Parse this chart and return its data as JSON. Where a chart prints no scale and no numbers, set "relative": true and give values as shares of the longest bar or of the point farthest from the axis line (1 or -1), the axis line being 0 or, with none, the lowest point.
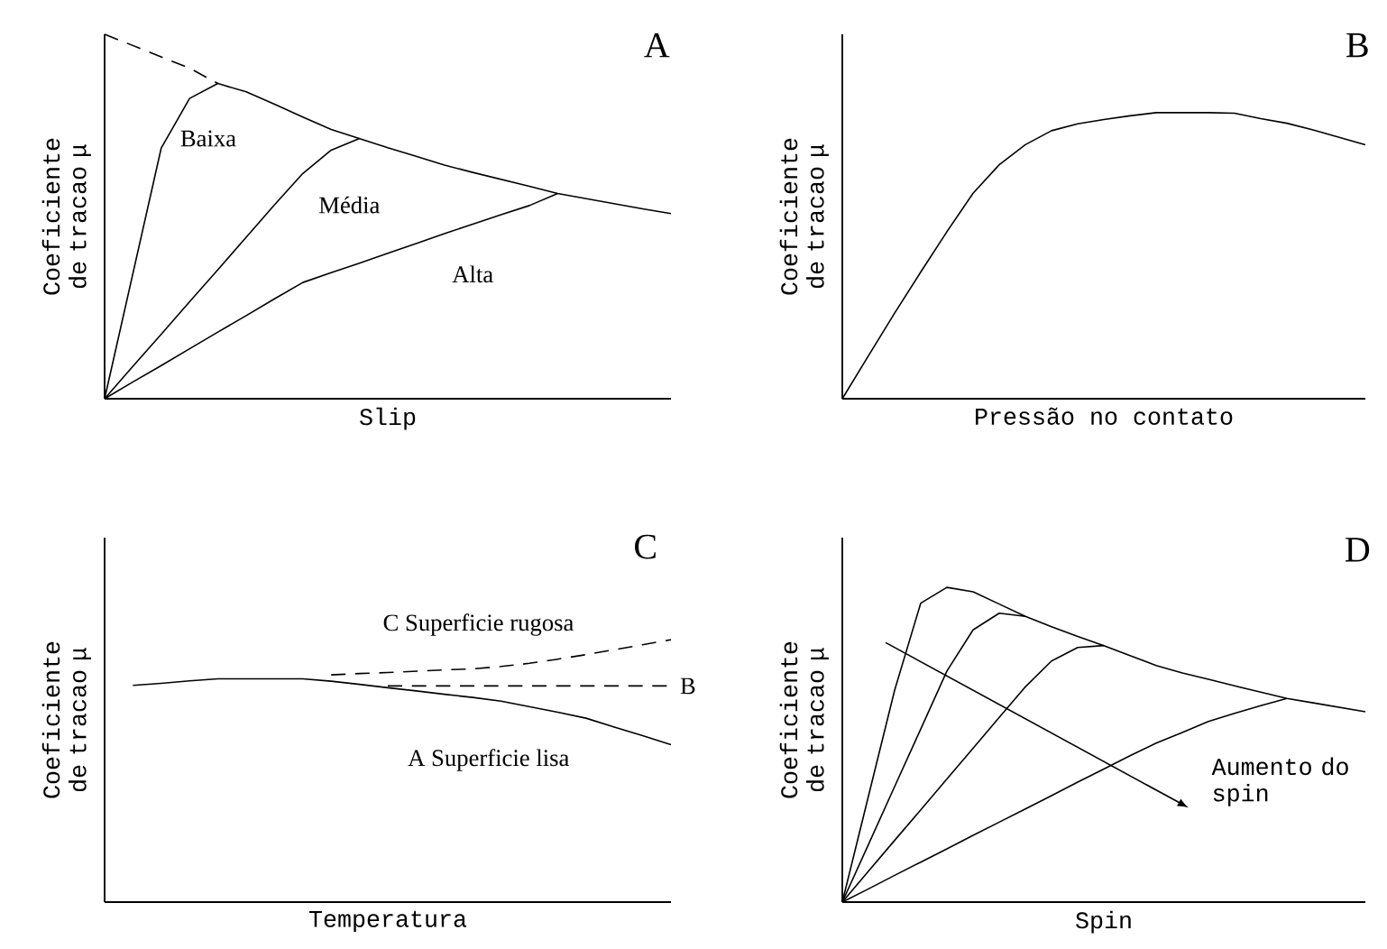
{
  "chart_data": [
    {
      "type": "line",
      "relative": true,
      "xlabel": "Slip",
      "ylabel": "Coeficiente de tracao μ",
      "tick_labels": false,
      "annotations": [
        "A"
      ],
      "categories": [
        null,
        null,
        null,
        null,
        null,
        null,
        null,
        null,
        null,
        null,
        null,
        null,
        null,
        null,
        null,
        null,
        null,
        null,
        null,
        null,
        null
      ],
      "series": [
        {
          "color": "#000000",
          "line_style": "dashed",
          "values": [
            1,
            0.969,
            0.938,
            0.907,
            0.865,
            null,
            null,
            null,
            null,
            null,
            null,
            null,
            null,
            null,
            null,
            null,
            null,
            null,
            null,
            null,
            null
          ]
        },
        {
          "name": "Baixa",
          "color": "#000000",
          "values": [
            0,
            0.344,
            0.688,
            0.824,
            0.865,
            0.842,
            0.808,
            0.773,
            0.739,
            0.714,
            0.689,
            0.665,
            0.641,
            0.621,
            0.602,
            0.583,
            0.563,
            0.549,
            0.535,
            0.521,
            0.508
          ]
        },
        {
          "name": "Média",
          "color": "#000000",
          "values": [
            0,
            0.089,
            0.177,
            0.266,
            0.354,
            0.443,
            0.532,
            0.618,
            0.682,
            0.714,
            null,
            null,
            null,
            null,
            null,
            null,
            null,
            null,
            null,
            null,
            null
          ]
        },
        {
          "name": "Alta",
          "color": "#000000",
          "values": [
            0,
            0.046,
            0.091,
            0.137,
            0.183,
            0.228,
            0.274,
            0.319,
            0.346,
            0.372,
            0.399,
            0.426,
            0.453,
            0.479,
            0.505,
            0.53,
            0.563,
            null,
            null,
            null,
            null
          ]
        }
      ]
    },
    {
      "type": "line",
      "relative": true,
      "xlabel": "Pressão no contato",
      "ylabel": "Coeficiente de tracao μ",
      "tick_labels": false,
      "annotations": [
        "B"
      ],
      "categories": [
        null,
        null,
        null,
        null,
        null,
        null,
        null,
        null,
        null,
        null,
        null,
        null,
        null,
        null,
        null,
        null,
        null,
        null,
        null,
        null,
        null
      ],
      "series": [
        {
          "color": "#000000",
          "values": [
            0,
            0.15,
            0.299,
            0.443,
            0.584,
            0.718,
            0.818,
            0.888,
            0.937,
            0.961,
            0.976,
            0.989,
            1,
            1,
            1,
            0.998,
            0.979,
            0.963,
            0.94,
            0.914,
            0.888
          ]
        }
      ]
    },
    {
      "type": "line",
      "relative": true,
      "xlabel": "Temperatura",
      "ylabel": "Coeficiente de tracao μ",
      "tick_labels": false,
      "annotations": [
        "C"
      ],
      "categories": [
        null,
        null,
        null,
        null,
        null,
        null,
        null,
        null,
        null,
        null,
        null,
        null,
        null,
        null,
        null,
        null,
        null,
        null,
        null,
        null,
        null
      ],
      "series": [
        {
          "name": "A Superficie lisa",
          "color": "#000000",
          "values": [
            null,
            0.826,
            0.834,
            0.843,
            0.851,
            0.851,
            0.851,
            0.851,
            0.842,
            0.83,
            0.817,
            0.805,
            0.792,
            0.78,
            0.766,
            0.745,
            0.724,
            0.701,
            0.667,
            0.634,
            0.6
          ]
        },
        {
          "name": "C Superficie rugosa",
          "color": "#000000",
          "line_style": "dashed",
          "values": [
            null,
            null,
            null,
            null,
            null,
            null,
            null,
            null,
            0.866,
            0.871,
            0.875,
            0.88,
            0.885,
            0.889,
            0.898,
            0.91,
            0.926,
            0.943,
            0.962,
            0.981,
            1
          ]
        },
        {
          "name": "B",
          "color": "#000000",
          "line_style": "dashed",
          "values": [
            null,
            null,
            null,
            null,
            null,
            null,
            null,
            null,
            null,
            null,
            0.824,
            0.824,
            0.824,
            0.824,
            0.824,
            0.824,
            0.824,
            0.824,
            0.824,
            0.824,
            0.824
          ]
        }
      ]
    },
    {
      "type": "line",
      "relative": true,
      "xlabel": "Spin",
      "ylabel": "Coeficiente de tracao μ",
      "tick_labels": false,
      "annotations": [
        "D",
        "Aumento do spin"
      ],
      "categories": [
        null,
        null,
        null,
        null,
        null,
        null,
        null,
        null,
        null,
        null,
        null,
        null,
        null,
        null,
        null,
        null,
        null,
        null,
        null,
        null,
        null
      ],
      "series": [
        {
          "color": "#000000",
          "values": [
            0,
            0.337,
            0.673,
            0.95,
            1,
            0.986,
            0.947,
            0.908,
            0.875,
            0.844,
            0.815,
            0.783,
            0.752,
            0.728,
            0.708,
            0.687,
            0.667,
            0.647,
            0.633,
            0.619,
            0.605
          ]
        },
        {
          "color": "#000000",
          "values": [
            0,
            0.183,
            0.367,
            0.55,
            0.734,
            0.865,
            0.918,
            0.908,
            null,
            null,
            null,
            null,
            null,
            null,
            null,
            null,
            null,
            null,
            null,
            null,
            null
          ]
        },
        {
          "color": "#000000",
          "values": [
            0,
            0.098,
            0.196,
            0.293,
            0.391,
            0.489,
            0.587,
            0.684,
            0.766,
            0.809,
            0.815,
            null,
            null,
            null,
            null,
            null,
            null,
            null,
            null,
            null,
            null
          ]
        },
        {
          "color": "#000000",
          "values": [
            0,
            0.042,
            0.085,
            0.127,
            0.169,
            0.212,
            0.254,
            0.296,
            0.338,
            0.381,
            0.423,
            0.465,
            0.505,
            0.539,
            0.574,
            0.6,
            0.624,
            0.647,
            null,
            null,
            null
          ]
        }
      ]
    }
  ]
}
